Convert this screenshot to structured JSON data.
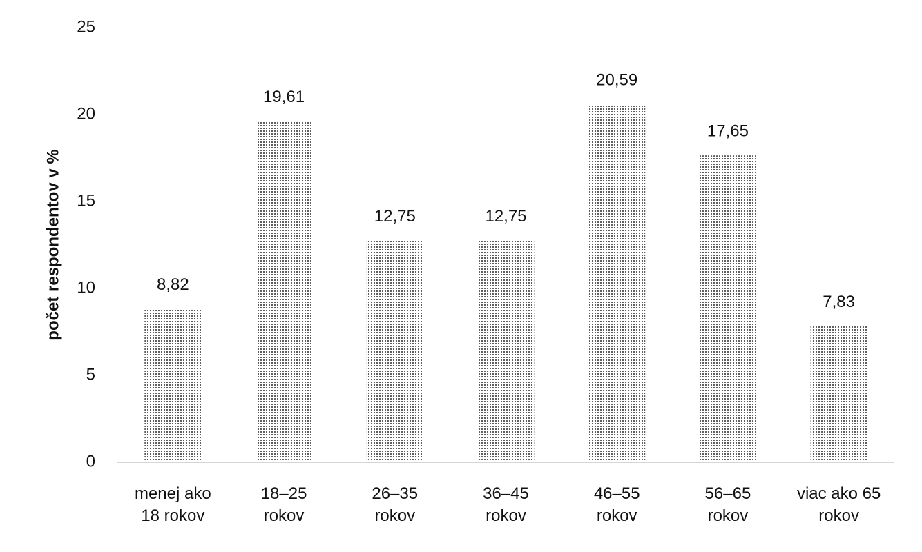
{
  "chart_data": {
    "type": "bar",
    "y_label": "počet respondentov v %",
    "categories": [
      "menej ako\n18 rokov",
      "18–25\nrokov",
      "26–35\nrokov",
      "36–45\nrokov",
      "46–55\nrokov",
      "56–65\nrokov",
      "viac ako 65\nrokov"
    ],
    "values": [
      8.82,
      19.61,
      12.75,
      12.75,
      20.59,
      17.65,
      7.83
    ],
    "value_labels": [
      "8,82",
      "19,61",
      "12,75",
      "12,75",
      "20,59",
      "17,65",
      "7,83"
    ],
    "color": "#2b2b2b",
    "ylim": [
      0,
      25
    ],
    "yticks": [
      0,
      5,
      10,
      15,
      20,
      25
    ],
    "grid": false
  }
}
